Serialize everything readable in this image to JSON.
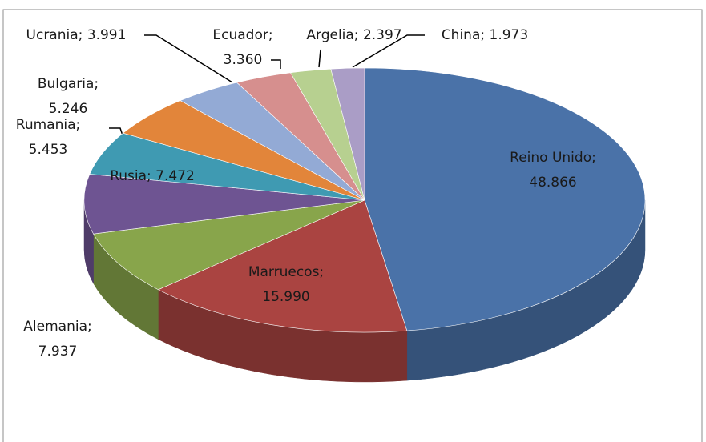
{
  "chart_data": {
    "type": "pie3d",
    "labels": [
      "Reino Unido; 48.866",
      "Marruecos; 15.990",
      "Alemania; 7.937",
      "Rusia; 7.472",
      "Rumania; 5.453",
      "Bulgaria; 5.246",
      "Ucrania; 3.991",
      "Ecuador; 3.360",
      "Argelia; 2.397",
      "China; 1.973"
    ],
    "values": [
      48866,
      15990,
      7937,
      7472,
      5453,
      5246,
      3991,
      3360,
      2397,
      1973
    ],
    "colors": [
      "#4a72a8",
      "#aa4441",
      "#88a54b",
      "#6e5492",
      "#3f9ab2",
      "#e2853a",
      "#93aad5",
      "#d68f8e",
      "#b7d090",
      "#aa9dc6"
    ]
  }
}
